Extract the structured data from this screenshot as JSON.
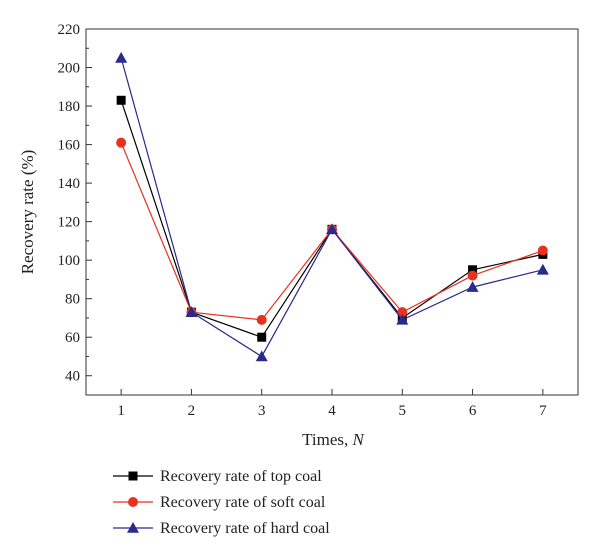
{
  "chart_data": {
    "type": "line",
    "title": "",
    "xlabel": "Times, ",
    "xlabel_var": "N",
    "ylabel": "Recovery rate (%)",
    "x": [
      1,
      2,
      3,
      4,
      5,
      6,
      7
    ],
    "xlim": [
      0.5,
      7.5
    ],
    "ylim": [
      30,
      220
    ],
    "yticks": [
      40,
      60,
      80,
      100,
      120,
      140,
      160,
      180,
      200,
      220
    ],
    "grid": false,
    "legend_position": "bottom-left, below plot",
    "series": [
      {
        "name": "Recovery rate of top coal",
        "marker": "square",
        "color": "#000000",
        "values": [
          183,
          73,
          60,
          116,
          70,
          95,
          103
        ]
      },
      {
        "name": "Recovery rate of soft coal",
        "marker": "circle",
        "color": "#e8321e",
        "values": [
          161,
          73,
          69,
          116,
          73,
          92,
          105
        ]
      },
      {
        "name": "Recovery rate of hard coal",
        "marker": "triangle",
        "color": "#2a2a8c",
        "values": [
          205,
          73,
          50,
          116,
          69,
          86,
          95
        ]
      }
    ]
  }
}
